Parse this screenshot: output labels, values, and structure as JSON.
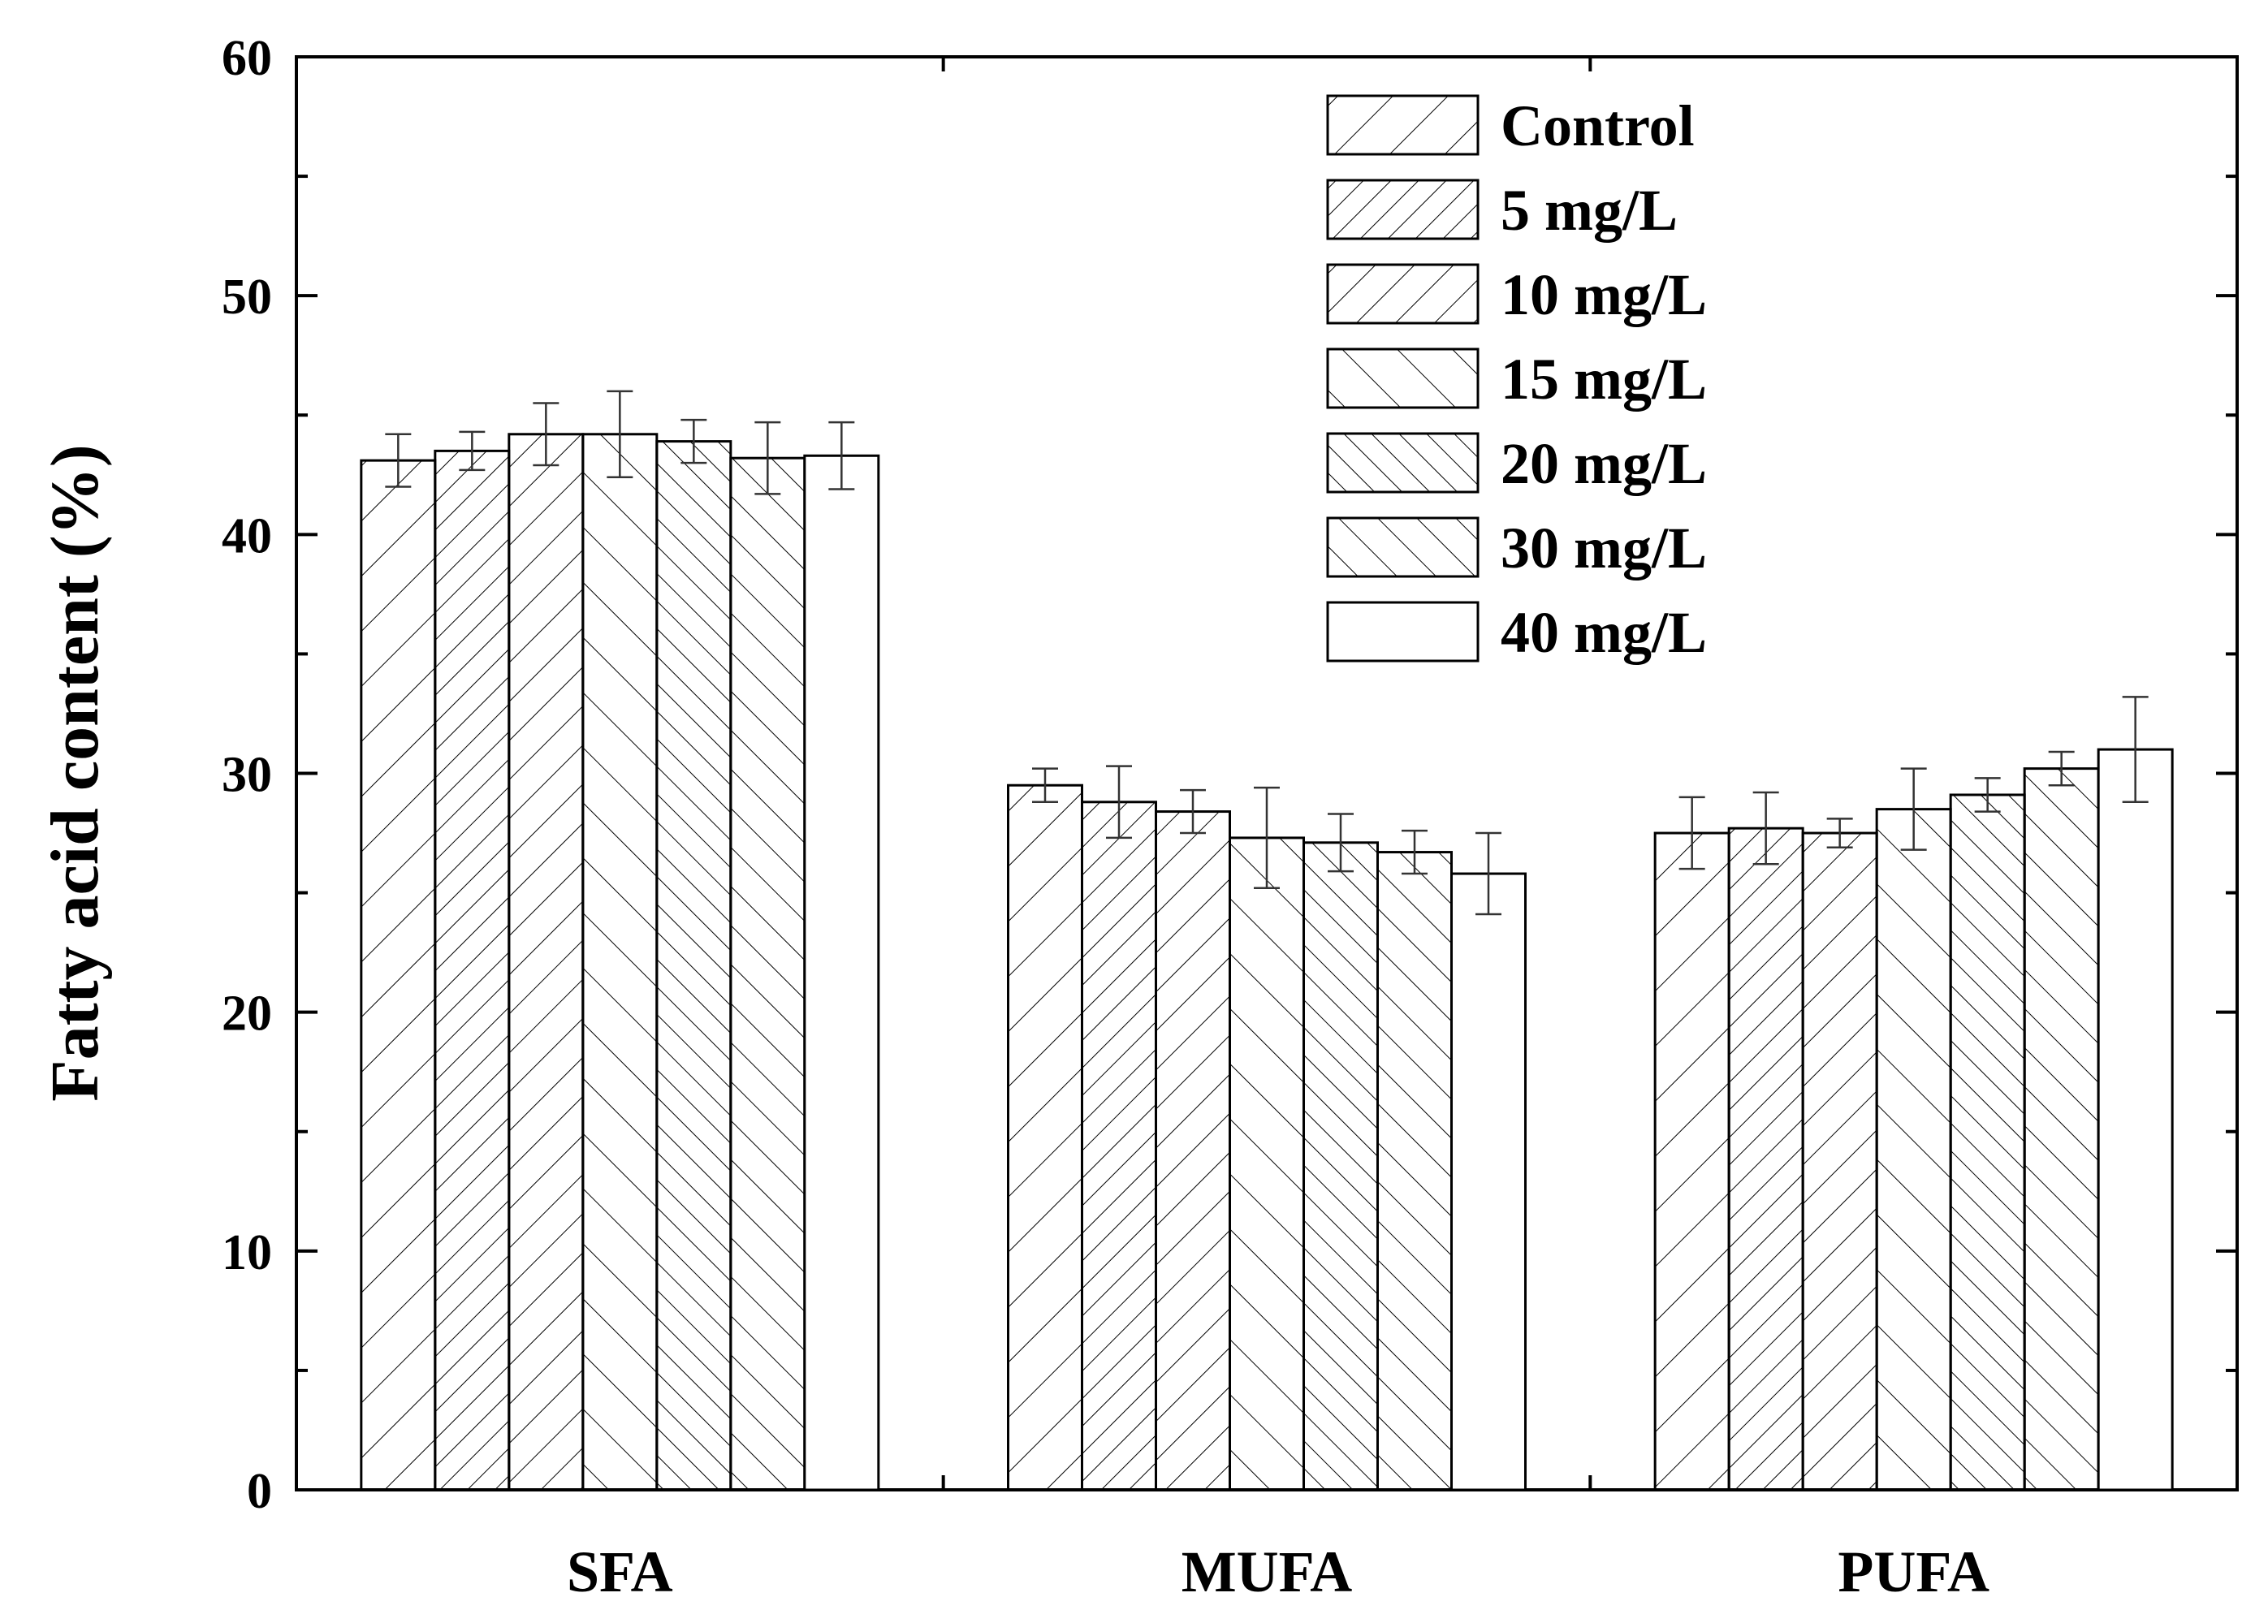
{
  "chart_data": {
    "type": "bar",
    "title": "",
    "xlabel": "",
    "ylabel": "Fatty acid content (%)",
    "ylim": [
      0,
      60
    ],
    "yticks": [
      0,
      10,
      20,
      30,
      40,
      50,
      60
    ],
    "ytick_labels": [
      "0",
      "10",
      "20",
      "30",
      "40",
      "50",
      "60"
    ],
    "categories": [
      "SFA",
      "MUFA",
      "PUFA"
    ],
    "legend_position": "top-right",
    "series": [
      {
        "name": "Control",
        "pattern": "diag-up-sparse",
        "values": [
          43.1,
          29.5,
          27.5
        ],
        "errors": [
          1.1,
          0.7,
          1.5
        ]
      },
      {
        "name": "5 mg/L",
        "pattern": "diag-up-dense",
        "values": [
          43.5,
          28.8,
          27.7
        ],
        "errors": [
          0.8,
          1.5,
          1.5
        ]
      },
      {
        "name": "10 mg/L",
        "pattern": "diag-up-medium",
        "values": [
          44.2,
          28.4,
          27.5
        ],
        "errors": [
          1.3,
          0.9,
          0.6
        ]
      },
      {
        "name": "15 mg/L",
        "pattern": "diag-down-sparse",
        "values": [
          44.2,
          27.3,
          28.5
        ],
        "errors": [
          1.8,
          2.1,
          1.7
        ]
      },
      {
        "name": "20 mg/L",
        "pattern": "diag-down-dense",
        "values": [
          43.9,
          27.1,
          29.1
        ],
        "errors": [
          0.9,
          1.2,
          0.7
        ]
      },
      {
        "name": "30 mg/L",
        "pattern": "diag-down-medium",
        "values": [
          43.2,
          26.7,
          30.2
        ],
        "errors": [
          1.5,
          0.9,
          0.7
        ]
      },
      {
        "name": "40 mg/L",
        "pattern": "none",
        "values": [
          43.3,
          25.8,
          31.0
        ],
        "errors": [
          1.4,
          1.7,
          2.2
        ]
      }
    ]
  }
}
